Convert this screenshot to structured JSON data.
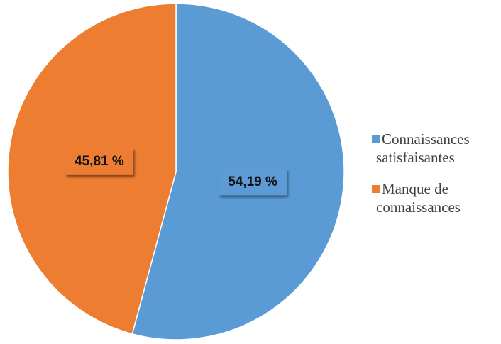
{
  "chart_data": {
    "type": "pie",
    "title": "",
    "series": [
      {
        "values": [
          54.19,
          45.81
        ],
        "value_labels": [
          "54,19 %",
          "45,81 %"
        ],
        "colors": [
          "#5B9BD5",
          "#ED7D31"
        ]
      }
    ],
    "categories": [
      "Connaissances satisfaisantes",
      "Manque de connaissances"
    ],
    "legend": {
      "placement": "right",
      "entries": [
        {
          "lines": [
            "Connaissances",
            "satisfaisantes"
          ],
          "color": "#5B9BD5"
        },
        {
          "lines": [
            "Manque de",
            "connaissances"
          ],
          "color": "#ED7D31"
        }
      ]
    },
    "start_angle": "top",
    "direction": "clockwise"
  }
}
